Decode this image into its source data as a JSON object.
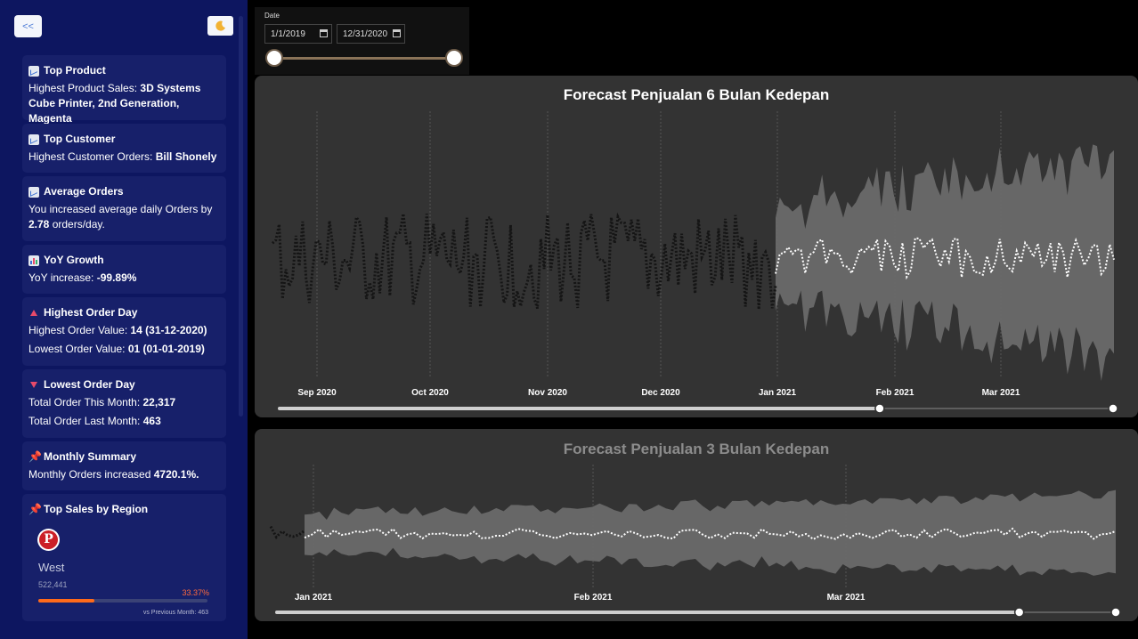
{
  "sidebar": {
    "collapse_label": "<<",
    "cards": {
      "top_product": {
        "title": "Top Product",
        "prefix": "Highest Product Sales: ",
        "value": "3D Systems Cube Printer, 2nd Generation, Magenta"
      },
      "top_customer": {
        "title": "Top Customer",
        "prefix": "Highest Customer Orders: ",
        "value": "Bill Shonely"
      },
      "average_orders": {
        "title": "Average Orders",
        "prefix": "You increased average daily Orders by ",
        "value": "2.78",
        "suffix": " orders/day."
      },
      "yoy_growth": {
        "title": "YoY Growth",
        "prefix": "YoY increase: ",
        "value": "-99.89%"
      },
      "highest_order_day": {
        "title": "Highest Order Day",
        "line1_prefix": "Highest Order Value: ",
        "line1_value": "14 (31-12-2020)",
        "line2_prefix": "Lowest Order Value: ",
        "line2_value": "01 (01-01-2019)"
      },
      "lowest_order_day": {
        "title": "Lowest Order Day",
        "line1_prefix": "Total Order This Month: ",
        "line1_value": "22,317",
        "line2_prefix": "Total Order Last Month: ",
        "line2_value": "463"
      },
      "monthly_summary": {
        "title": "Monthly Summary",
        "prefix": "Monthly Orders increased ",
        "value": "4720.1%."
      },
      "top_sales_region": {
        "title": "Top Sales by Region",
        "logo_letter": "P",
        "region": "West",
        "value": "522,441",
        "percent": "33.37%",
        "percent_fraction": 0.3337,
        "vs": "vs Previous Month: 463"
      }
    }
  },
  "date_slicer": {
    "label": "Date",
    "start": "1/1/2019",
    "end": "12/31/2020"
  },
  "colors": {
    "sidebar_bg": "#0d1660",
    "card_bg": "#17206a",
    "chart_bg": "#333333",
    "history_line": "#1a1a1a",
    "forecast_line": "#ffffff",
    "band": "#6a6a6a",
    "accent_orange": "#ff6a1a"
  },
  "chart_data": [
    {
      "type": "line",
      "title": "Forecast Penjualan 6 Bulan Kedepan",
      "x_ticks": [
        "Sep 2020",
        "Oct 2020",
        "Nov 2020",
        "Dec 2020",
        "Jan 2021",
        "Feb 2021",
        "Mar 2021"
      ],
      "series": [],
      "legend": "none",
      "grid": "vertical-dotted",
      "scroll_window": [
        0.0,
        0.72
      ]
    },
    {
      "type": "line",
      "title": "Forecast Penjualan 3 Bulan Kedepan",
      "x_ticks": [
        "Jan 2021",
        "Feb 2021",
        "Mar 2021"
      ],
      "series": [],
      "legend": "none",
      "grid": "vertical-dotted",
      "scroll_window": [
        0.0,
        0.885
      ]
    }
  ]
}
